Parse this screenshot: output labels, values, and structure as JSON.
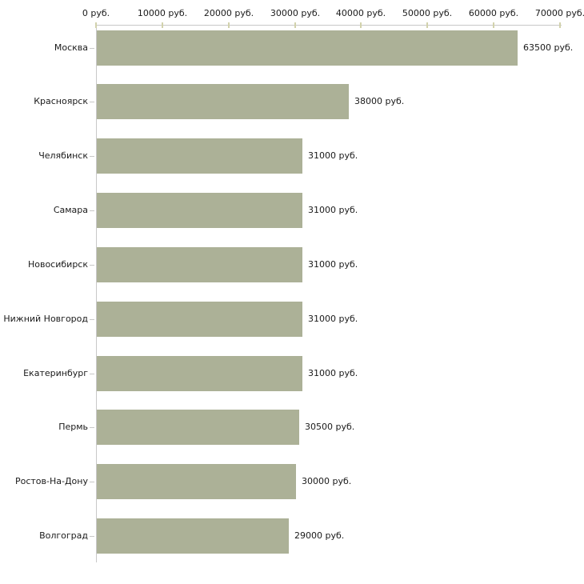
{
  "chart_data": {
    "type": "bar",
    "orientation": "horizontal",
    "unit": "руб.",
    "categories": [
      "Москва",
      "Красноярск",
      "Челябинск",
      "Самара",
      "Новосибирск",
      "Нижний Новгород",
      "Екатеринбург",
      "Пермь",
      "Ростов-На-Дону",
      "Волгоград"
    ],
    "values": [
      63500,
      38000,
      31000,
      31000,
      31000,
      31000,
      31000,
      30500,
      30000,
      29000
    ],
    "value_labels": [
      "63500 руб.",
      "38000 руб.",
      "31000 руб.",
      "31000 руб.",
      "31000 руб.",
      "31000 руб.",
      "31000 руб.",
      "30500 руб.",
      "30000 руб.",
      "29000 руб."
    ],
    "x_axis": {
      "position": "top",
      "range": [
        0,
        70000
      ],
      "tick_values": [
        0,
        10000,
        20000,
        30000,
        40000,
        50000,
        60000,
        70000
      ],
      "tick_labels": [
        "0 руб.",
        "10000 руб.",
        "20000 руб.",
        "30000 руб.",
        "40000 руб.",
        "50000 руб.",
        "60000 руб.",
        "70000 руб."
      ]
    },
    "legend": "none",
    "grid": "off",
    "colors": {
      "bar": "#acb197",
      "axis_line": "#c8c8c8",
      "axis_tick": "#d2d2ac",
      "text": "#1a1a1a",
      "background": "#ffffff"
    }
  }
}
